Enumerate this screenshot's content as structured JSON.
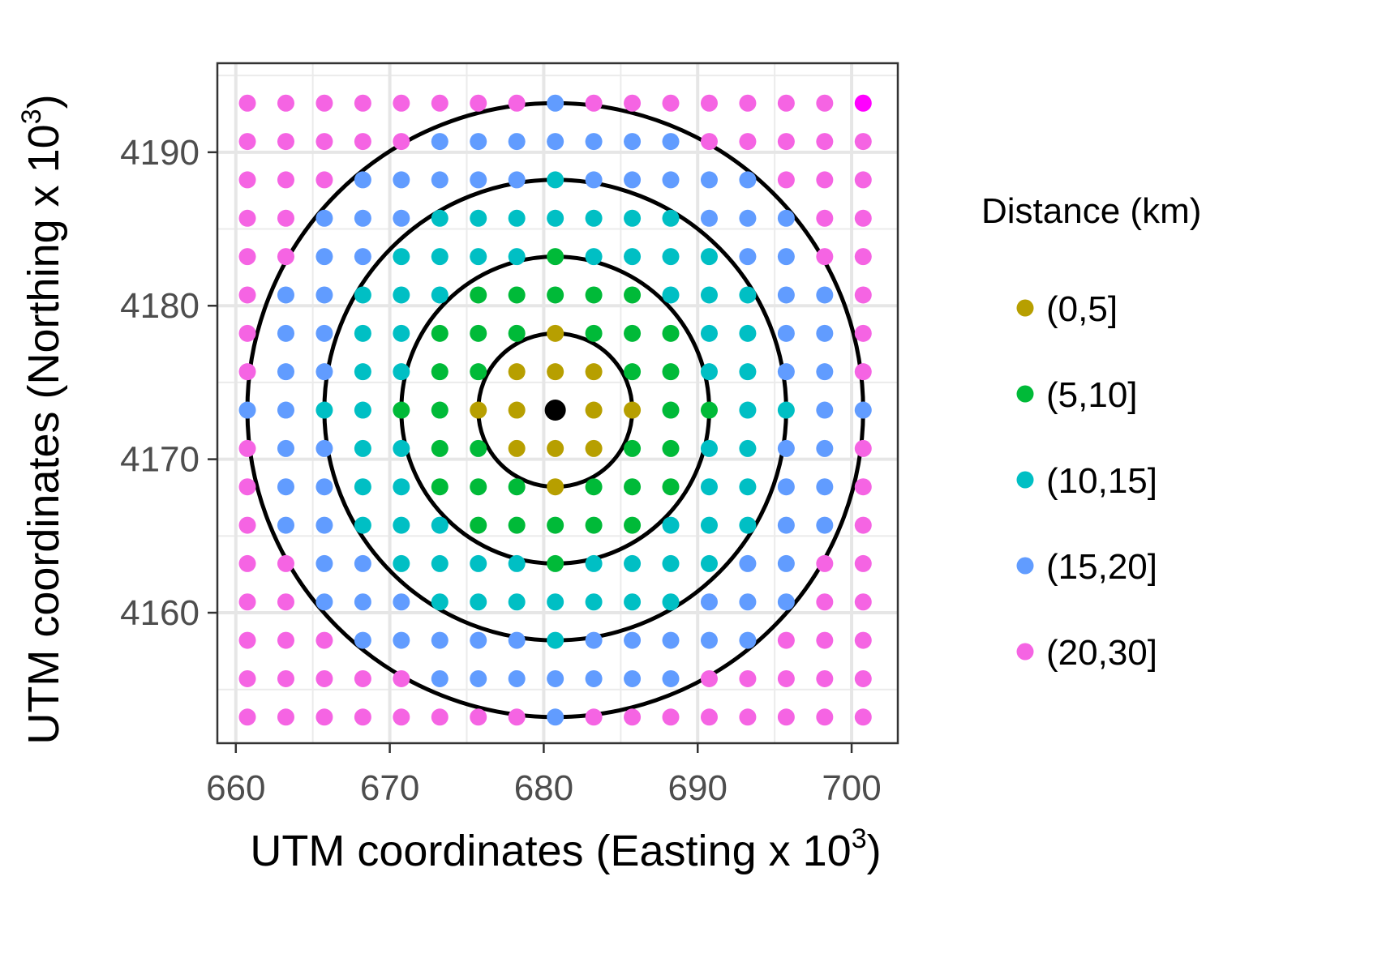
{
  "chart_data": {
    "type": "scatter",
    "title": "",
    "xlabel": "UTM coordinates (Easting x 10",
    "xlabel_sup": "3",
    "xlabel_end": ")",
    "ylabel": "UTM coordinates (Northing x 10",
    "ylabel_sup": "3",
    "ylabel_end": ")",
    "x_ticks": [
      "660",
      "670",
      "680",
      "690",
      "700"
    ],
    "y_ticks": [
      "4160",
      "4170",
      "4180",
      "4190"
    ],
    "xlim": [
      658.8,
      703.0
    ],
    "ylim": [
      4151.5,
      4195.8
    ],
    "grid": true,
    "legend": {
      "title": "Distance (km)",
      "position": "right",
      "entries": [
        {
          "label": "(0,5]",
          "color": "#b79f00"
        },
        {
          "label": "(5,10]",
          "color": "#00ba38"
        },
        {
          "label": "(10,15]",
          "color": "#00bfc4"
        },
        {
          "label": "(15,20]",
          "color": "#619cff"
        },
        {
          "label": "(20,30]",
          "color": "#f564e3"
        }
      ]
    },
    "grid_points": {
      "x_start": 660.75,
      "x_step": 2.5,
      "x_count": 17,
      "y_start": 4153.2,
      "y_step": 2.5,
      "y_count": 17
    },
    "center": {
      "x": 680.75,
      "y": 4173.2,
      "color": "#000000"
    },
    "circle_radii_km": [
      5,
      10,
      15,
      20
    ],
    "outlier_point": {
      "x": 700.75,
      "y": 4193.2,
      "color": "#ff00ff"
    }
  }
}
